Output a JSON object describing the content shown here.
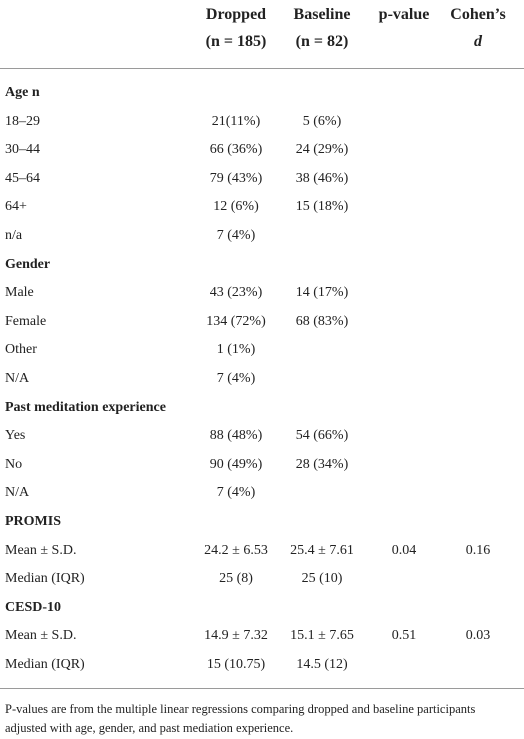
{
  "table": {
    "header": [
      {
        "lines": [
          "Dropped",
          "(n = 185)"
        ]
      },
      {
        "lines": [
          "Baseline",
          "(n = 82)"
        ]
      },
      {
        "lines": [
          "p-value"
        ]
      },
      {
        "lines": [
          "Cohen’s",
          "d"
        ]
      }
    ],
    "sections": [
      {
        "title": "Age n",
        "rows": [
          {
            "label": "18–29",
            "dropped": "21(11%)",
            "baseline": "5 (6%)"
          },
          {
            "label": "30–44",
            "dropped": "66 (36%)",
            "baseline": "24 (29%)"
          },
          {
            "label": "45–64",
            "dropped": "79 (43%)",
            "baseline": "38 (46%)"
          },
          {
            "label": "64+",
            "dropped": "12 (6%)",
            "baseline": "15 (18%)"
          },
          {
            "label": "n/a",
            "dropped": "7 (4%)"
          }
        ]
      },
      {
        "title": "Gender",
        "rows": [
          {
            "label": "Male",
            "dropped": "43 (23%)",
            "baseline": "14 (17%)"
          },
          {
            "label": "Female",
            "dropped": "134 (72%)",
            "baseline": "68 (83%)"
          },
          {
            "label": "Other",
            "dropped": "1 (1%)"
          },
          {
            "label": "N/A",
            "dropped": "7 (4%)"
          }
        ]
      },
      {
        "title": "Past meditation experience",
        "rows": [
          {
            "label": "Yes",
            "dropped": "88 (48%)",
            "baseline": "54 (66%)"
          },
          {
            "label": "No",
            "dropped": "90 (49%)",
            "baseline": "28 (34%)"
          },
          {
            "label": "N/A",
            "dropped": "7 (4%)"
          }
        ]
      },
      {
        "title": "PROMIS",
        "rows": [
          {
            "label": "Mean ± S.D.",
            "dropped": "24.2 ± 6.53",
            "baseline": "25.4 ± 7.61",
            "p": "0.04",
            "d": "0.16"
          },
          {
            "label": "Median (IQR)",
            "dropped": "25 (8)",
            "baseline": "25 (10)"
          }
        ]
      },
      {
        "title": "CESD-10",
        "rows": [
          {
            "label": "Mean ± S.D.",
            "dropped": "14.9 ± 7.32",
            "baseline": "15.1 ± 7.65",
            "p": "0.51",
            "d": "0.03"
          },
          {
            "label": "Median (IQR)",
            "dropped": "15 (10.75)",
            "baseline": "14.5 (12)"
          }
        ]
      }
    ],
    "footnote": "P-values are from the multiple linear regressions comparing dropped and baseline participants adjusted with age, gender, and past mediation experience."
  }
}
